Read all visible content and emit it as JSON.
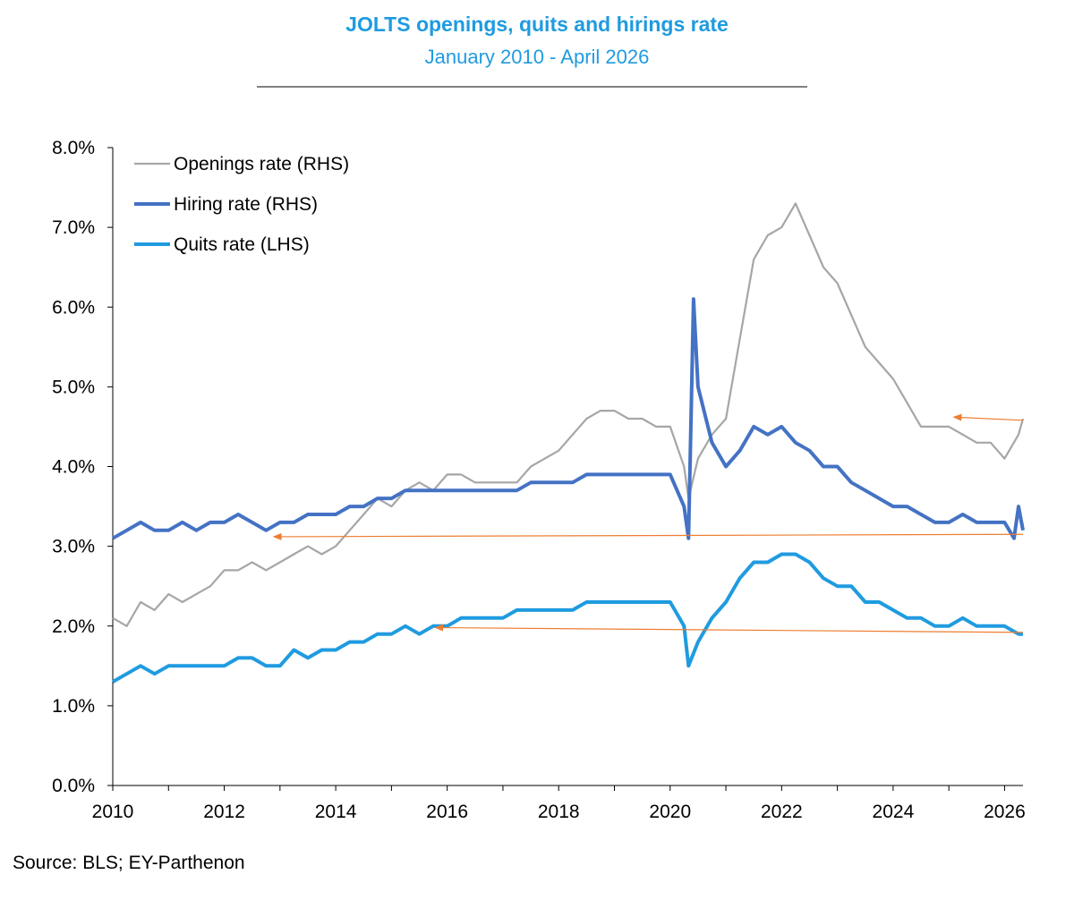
{
  "chart_data": {
    "type": "line",
    "title": "JOLTS openings, quits and hirings rate",
    "subtitle": "January 2010 - April 2026",
    "source": "Source: BLS; EY-Parthenon",
    "ylim": [
      0,
      8
    ],
    "xlim": [
      2010,
      2026.33
    ],
    "y_ticks": [
      "0.0%",
      "1.0%",
      "2.0%",
      "3.0%",
      "4.0%",
      "5.0%",
      "6.0%",
      "7.0%",
      "8.0%"
    ],
    "x_ticks": [
      "2010",
      "2012",
      "2014",
      "2016",
      "2018",
      "2020",
      "2022",
      "2024",
      "2026"
    ],
    "legend_position": "top-left",
    "grid": false,
    "series": [
      {
        "name": "Openings rate (RHS)",
        "color": "#a6a6a6",
        "points": [
          [
            2010.0,
            2.1
          ],
          [
            2010.25,
            2.0
          ],
          [
            2010.5,
            2.3
          ],
          [
            2010.75,
            2.2
          ],
          [
            2011.0,
            2.4
          ],
          [
            2011.25,
            2.3
          ],
          [
            2011.5,
            2.4
          ],
          [
            2011.75,
            2.5
          ],
          [
            2012.0,
            2.7
          ],
          [
            2012.25,
            2.7
          ],
          [
            2012.5,
            2.8
          ],
          [
            2012.75,
            2.7
          ],
          [
            2013.0,
            2.8
          ],
          [
            2013.25,
            2.9
          ],
          [
            2013.5,
            3.0
          ],
          [
            2013.75,
            2.9
          ],
          [
            2014.0,
            3.0
          ],
          [
            2014.25,
            3.2
          ],
          [
            2014.5,
            3.4
          ],
          [
            2014.75,
            3.6
          ],
          [
            2015.0,
            3.5
          ],
          [
            2015.25,
            3.7
          ],
          [
            2015.5,
            3.8
          ],
          [
            2015.75,
            3.7
          ],
          [
            2016.0,
            3.9
          ],
          [
            2016.25,
            3.9
          ],
          [
            2016.5,
            3.8
          ],
          [
            2016.75,
            3.8
          ],
          [
            2017.0,
            3.8
          ],
          [
            2017.25,
            3.8
          ],
          [
            2017.5,
            4.0
          ],
          [
            2017.75,
            4.1
          ],
          [
            2018.0,
            4.2
          ],
          [
            2018.25,
            4.4
          ],
          [
            2018.5,
            4.6
          ],
          [
            2018.75,
            4.7
          ],
          [
            2019.0,
            4.7
          ],
          [
            2019.25,
            4.6
          ],
          [
            2019.5,
            4.6
          ],
          [
            2019.75,
            4.5
          ],
          [
            2020.0,
            4.5
          ],
          [
            2020.25,
            4.0
          ],
          [
            2020.33,
            3.6
          ],
          [
            2020.5,
            4.1
          ],
          [
            2020.75,
            4.4
          ],
          [
            2021.0,
            4.6
          ],
          [
            2021.25,
            5.6
          ],
          [
            2021.5,
            6.6
          ],
          [
            2021.75,
            6.9
          ],
          [
            2022.0,
            7.0
          ],
          [
            2022.25,
            7.3
          ],
          [
            2022.5,
            6.9
          ],
          [
            2022.75,
            6.5
          ],
          [
            2023.0,
            6.3
          ],
          [
            2023.25,
            5.9
          ],
          [
            2023.5,
            5.5
          ],
          [
            2023.75,
            5.3
          ],
          [
            2024.0,
            5.1
          ],
          [
            2024.25,
            4.8
          ],
          [
            2024.5,
            4.5
          ],
          [
            2024.75,
            4.5
          ],
          [
            2025.0,
            4.5
          ],
          [
            2025.25,
            4.4
          ],
          [
            2025.5,
            4.3
          ],
          [
            2025.75,
            4.3
          ],
          [
            2026.0,
            4.1
          ],
          [
            2026.25,
            4.4
          ],
          [
            2026.33,
            4.6
          ]
        ]
      },
      {
        "name": "Hiring rate (RHS)",
        "color": "#4472c4",
        "points": [
          [
            2010.0,
            3.1
          ],
          [
            2010.25,
            3.2
          ],
          [
            2010.5,
            3.3
          ],
          [
            2010.75,
            3.2
          ],
          [
            2011.0,
            3.2
          ],
          [
            2011.25,
            3.3
          ],
          [
            2011.5,
            3.2
          ],
          [
            2011.75,
            3.3
          ],
          [
            2012.0,
            3.3
          ],
          [
            2012.25,
            3.4
          ],
          [
            2012.5,
            3.3
          ],
          [
            2012.75,
            3.2
          ],
          [
            2013.0,
            3.3
          ],
          [
            2013.25,
            3.3
          ],
          [
            2013.5,
            3.4
          ],
          [
            2013.75,
            3.4
          ],
          [
            2014.0,
            3.4
          ],
          [
            2014.25,
            3.5
          ],
          [
            2014.5,
            3.5
          ],
          [
            2014.75,
            3.6
          ],
          [
            2015.0,
            3.6
          ],
          [
            2015.25,
            3.7
          ],
          [
            2015.5,
            3.7
          ],
          [
            2015.75,
            3.7
          ],
          [
            2016.0,
            3.7
          ],
          [
            2016.25,
            3.7
          ],
          [
            2016.5,
            3.7
          ],
          [
            2016.75,
            3.7
          ],
          [
            2017.0,
            3.7
          ],
          [
            2017.25,
            3.7
          ],
          [
            2017.5,
            3.8
          ],
          [
            2017.75,
            3.8
          ],
          [
            2018.0,
            3.8
          ],
          [
            2018.25,
            3.8
          ],
          [
            2018.5,
            3.9
          ],
          [
            2018.75,
            3.9
          ],
          [
            2019.0,
            3.9
          ],
          [
            2019.25,
            3.9
          ],
          [
            2019.5,
            3.9
          ],
          [
            2019.75,
            3.9
          ],
          [
            2020.0,
            3.9
          ],
          [
            2020.25,
            3.5
          ],
          [
            2020.33,
            3.1
          ],
          [
            2020.42,
            6.1
          ],
          [
            2020.5,
            5.0
          ],
          [
            2020.75,
            4.3
          ],
          [
            2021.0,
            4.0
          ],
          [
            2021.25,
            4.2
          ],
          [
            2021.5,
            4.5
          ],
          [
            2021.75,
            4.4
          ],
          [
            2022.0,
            4.5
          ],
          [
            2022.25,
            4.3
          ],
          [
            2022.5,
            4.2
          ],
          [
            2022.75,
            4.0
          ],
          [
            2023.0,
            4.0
          ],
          [
            2023.25,
            3.8
          ],
          [
            2023.5,
            3.7
          ],
          [
            2023.75,
            3.6
          ],
          [
            2024.0,
            3.5
          ],
          [
            2024.25,
            3.5
          ],
          [
            2024.5,
            3.4
          ],
          [
            2024.75,
            3.3
          ],
          [
            2025.0,
            3.3
          ],
          [
            2025.25,
            3.4
          ],
          [
            2025.5,
            3.3
          ],
          [
            2025.75,
            3.3
          ],
          [
            2026.0,
            3.3
          ],
          [
            2026.17,
            3.1
          ],
          [
            2026.25,
            3.5
          ],
          [
            2026.33,
            3.2
          ]
        ]
      },
      {
        "name": "Quits rate (LHS)",
        "color": "#1f9be0",
        "points": [
          [
            2010.0,
            1.3
          ],
          [
            2010.25,
            1.4
          ],
          [
            2010.5,
            1.5
          ],
          [
            2010.75,
            1.4
          ],
          [
            2011.0,
            1.5
          ],
          [
            2011.25,
            1.5
          ],
          [
            2011.5,
            1.5
          ],
          [
            2011.75,
            1.5
          ],
          [
            2012.0,
            1.5
          ],
          [
            2012.25,
            1.6
          ],
          [
            2012.5,
            1.6
          ],
          [
            2012.75,
            1.5
          ],
          [
            2013.0,
            1.5
          ],
          [
            2013.25,
            1.7
          ],
          [
            2013.5,
            1.6
          ],
          [
            2013.75,
            1.7
          ],
          [
            2014.0,
            1.7
          ],
          [
            2014.25,
            1.8
          ],
          [
            2014.5,
            1.8
          ],
          [
            2014.75,
            1.9
          ],
          [
            2015.0,
            1.9
          ],
          [
            2015.25,
            2.0
          ],
          [
            2015.5,
            1.9
          ],
          [
            2015.75,
            2.0
          ],
          [
            2016.0,
            2.0
          ],
          [
            2016.25,
            2.1
          ],
          [
            2016.5,
            2.1
          ],
          [
            2016.75,
            2.1
          ],
          [
            2017.0,
            2.1
          ],
          [
            2017.25,
            2.2
          ],
          [
            2017.5,
            2.2
          ],
          [
            2017.75,
            2.2
          ],
          [
            2018.0,
            2.2
          ],
          [
            2018.25,
            2.2
          ],
          [
            2018.5,
            2.3
          ],
          [
            2018.75,
            2.3
          ],
          [
            2019.0,
            2.3
          ],
          [
            2019.25,
            2.3
          ],
          [
            2019.5,
            2.3
          ],
          [
            2019.75,
            2.3
          ],
          [
            2020.0,
            2.3
          ],
          [
            2020.25,
            2.0
          ],
          [
            2020.33,
            1.5
          ],
          [
            2020.5,
            1.8
          ],
          [
            2020.75,
            2.1
          ],
          [
            2021.0,
            2.3
          ],
          [
            2021.25,
            2.6
          ],
          [
            2021.5,
            2.8
          ],
          [
            2021.75,
            2.8
          ],
          [
            2022.0,
            2.9
          ],
          [
            2022.25,
            2.9
          ],
          [
            2022.5,
            2.8
          ],
          [
            2022.75,
            2.6
          ],
          [
            2023.0,
            2.5
          ],
          [
            2023.25,
            2.5
          ],
          [
            2023.5,
            2.3
          ],
          [
            2023.75,
            2.3
          ],
          [
            2024.0,
            2.2
          ],
          [
            2024.25,
            2.1
          ],
          [
            2024.5,
            2.1
          ],
          [
            2024.75,
            2.0
          ],
          [
            2025.0,
            2.0
          ],
          [
            2025.25,
            2.1
          ],
          [
            2025.5,
            2.0
          ],
          [
            2025.75,
            2.0
          ],
          [
            2026.0,
            2.0
          ],
          [
            2026.25,
            1.9
          ],
          [
            2026.33,
            1.9
          ]
        ]
      }
    ],
    "annotations": [
      {
        "type": "arrow",
        "color": "#ed7d31",
        "from": [
          2026.33,
          4.58
        ],
        "to": [
          2025.1,
          4.62
        ]
      },
      {
        "type": "arrow",
        "color": "#ed7d31",
        "from": [
          2026.33,
          3.15
        ],
        "to": [
          2012.9,
          3.12
        ]
      },
      {
        "type": "arrow",
        "color": "#ed7d31",
        "from": [
          2026.33,
          1.92
        ],
        "to": [
          2015.8,
          1.98
        ]
      }
    ]
  }
}
